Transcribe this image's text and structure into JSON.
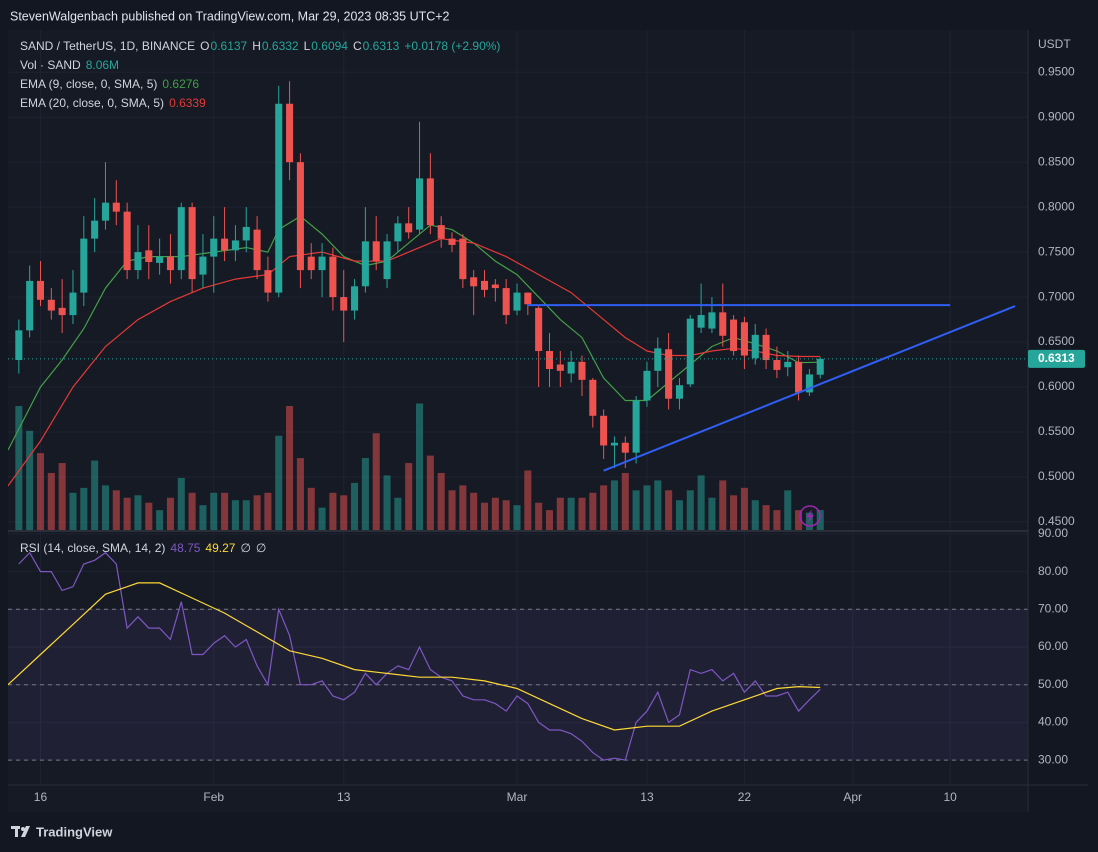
{
  "chart_data": {
    "type": "candlestick",
    "published": "StevenWalgenbach published on TradingView.com, Mar 29, 2023 08:35 UTC+2",
    "brand": "TradingView",
    "title": "SAND / TetherUS, 1D, BINANCE",
    "ohlc_keys": [
      "O",
      "H",
      "L",
      "C"
    ],
    "change_label": "+0.0178 (+2.90%)",
    "y_axis_label": "USDT",
    "up_color": "#26a69a",
    "down_color": "#ef5350",
    "x": [
      "01-14",
      "01-15",
      "01-16",
      "01-17",
      "01-18",
      "01-19",
      "01-20",
      "01-21",
      "01-22",
      "01-23",
      "01-24",
      "01-25",
      "01-26",
      "01-27",
      "01-28",
      "01-29",
      "01-30",
      "01-31",
      "02-01",
      "02-02",
      "02-03",
      "02-04",
      "02-05",
      "02-06",
      "02-07",
      "02-08",
      "02-09",
      "02-10",
      "02-11",
      "02-12",
      "02-13",
      "02-14",
      "02-15",
      "02-16",
      "02-17",
      "02-18",
      "02-19",
      "02-20",
      "02-21",
      "02-22",
      "02-23",
      "02-24",
      "02-25",
      "02-26",
      "02-27",
      "02-28",
      "03-01",
      "03-02",
      "03-03",
      "03-04",
      "03-05",
      "03-06",
      "03-07",
      "03-08",
      "03-09",
      "03-10",
      "03-11",
      "03-12",
      "03-13",
      "03-14",
      "03-15",
      "03-16",
      "03-17",
      "03-18",
      "03-19",
      "03-20",
      "03-21",
      "03-22",
      "03-23",
      "03-24",
      "03-25",
      "03-26",
      "03-27",
      "03-28",
      "03-29"
    ],
    "open": [
      0.63,
      0.663,
      0.718,
      0.697,
      0.688,
      0.68,
      0.705,
      0.765,
      0.785,
      0.805,
      0.795,
      0.73,
      0.752,
      0.738,
      0.745,
      0.73,
      0.8,
      0.725,
      0.745,
      0.765,
      0.752,
      0.763,
      0.775,
      0.73,
      0.705,
      0.915,
      0.85,
      0.745,
      0.73,
      0.745,
      0.7,
      0.685,
      0.712,
      0.762,
      0.72,
      0.762,
      0.782,
      0.775,
      0.832,
      0.78,
      0.765,
      0.765,
      0.722,
      0.718,
      0.714,
      0.71,
      0.685,
      0.705,
      0.688,
      0.64,
      0.625,
      0.615,
      0.628,
      0.608,
      0.568,
      0.535,
      0.538,
      0.527,
      0.585,
      0.618,
      0.642,
      0.587,
      0.603,
      0.666,
      0.665,
      0.683,
      0.675,
      0.672,
      0.632,
      0.658,
      0.63,
      0.622,
      0.628,
      0.594,
      0.6137
    ],
    "high": [
      0.675,
      0.735,
      0.74,
      0.71,
      0.72,
      0.73,
      0.79,
      0.81,
      0.85,
      0.83,
      0.805,
      0.78,
      0.78,
      0.765,
      0.77,
      0.805,
      0.805,
      0.77,
      0.79,
      0.8,
      0.78,
      0.8,
      0.79,
      0.745,
      0.935,
      0.94,
      0.86,
      0.76,
      0.76,
      0.755,
      0.73,
      0.72,
      0.8,
      0.79,
      0.77,
      0.79,
      0.8,
      0.895,
      0.86,
      0.79,
      0.772,
      0.77,
      0.73,
      0.73,
      0.72,
      0.72,
      0.715,
      0.705,
      0.69,
      0.66,
      0.64,
      0.64,
      0.635,
      0.61,
      0.575,
      0.545,
      0.545,
      0.59,
      0.628,
      0.655,
      0.66,
      0.61,
      0.68,
      0.715,
      0.7,
      0.715,
      0.68,
      0.678,
      0.67,
      0.665,
      0.645,
      0.64,
      0.635,
      0.62,
      0.6332
    ],
    "low": [
      0.615,
      0.655,
      0.69,
      0.675,
      0.66,
      0.67,
      0.69,
      0.75,
      0.775,
      0.78,
      0.72,
      0.72,
      0.72,
      0.725,
      0.715,
      0.72,
      0.705,
      0.71,
      0.705,
      0.74,
      0.74,
      0.75,
      0.72,
      0.695,
      0.7,
      0.83,
      0.71,
      0.72,
      0.7,
      0.685,
      0.65,
      0.675,
      0.705,
      0.73,
      0.71,
      0.75,
      0.765,
      0.77,
      0.77,
      0.755,
      0.75,
      0.71,
      0.68,
      0.7,
      0.695,
      0.67,
      0.68,
      0.68,
      0.6,
      0.6,
      0.6,
      0.605,
      0.59,
      0.555,
      0.52,
      0.51,
      0.51,
      0.515,
      0.578,
      0.6,
      0.575,
      0.575,
      0.6,
      0.66,
      0.66,
      0.645,
      0.635,
      0.62,
      0.625,
      0.62,
      0.61,
      0.612,
      0.585,
      0.59,
      0.6094
    ],
    "close": [
      0.663,
      0.718,
      0.697,
      0.685,
      0.68,
      0.705,
      0.765,
      0.785,
      0.805,
      0.795,
      0.73,
      0.75,
      0.739,
      0.745,
      0.73,
      0.8,
      0.72,
      0.745,
      0.765,
      0.752,
      0.763,
      0.778,
      0.73,
      0.705,
      0.915,
      0.85,
      0.73,
      0.73,
      0.745,
      0.7,
      0.685,
      0.712,
      0.762,
      0.74,
      0.762,
      0.782,
      0.772,
      0.832,
      0.78,
      0.765,
      0.758,
      0.72,
      0.712,
      0.708,
      0.71,
      0.68,
      0.705,
      0.692,
      0.64,
      0.62,
      0.618,
      0.628,
      0.608,
      0.568,
      0.535,
      0.538,
      0.527,
      0.585,
      0.618,
      0.643,
      0.587,
      0.602,
      0.676,
      0.68,
      0.683,
      0.657,
      0.64,
      0.635,
      0.658,
      0.63,
      0.619,
      0.628,
      0.594,
      0.614,
      0.6313
    ],
    "volume": {
      "name": "Vol · SAND",
      "last_label": "8.06M",
      "values": [
        50,
        40,
        31,
        23,
        27,
        15,
        17,
        28,
        18,
        16,
        13,
        14,
        11,
        8,
        13,
        21,
        15,
        10,
        15,
        15,
        12,
        12,
        14,
        15,
        38,
        50,
        29,
        17,
        9,
        15,
        14,
        19,
        29,
        39,
        22,
        13,
        27,
        51,
        30,
        23,
        16,
        18,
        15,
        11,
        13,
        12,
        10,
        24,
        11,
        8,
        13,
        13,
        13,
        15,
        18,
        20,
        23,
        16,
        18,
        20,
        16,
        12,
        16,
        22,
        13,
        20,
        14,
        17,
        12,
        10,
        8,
        16,
        8,
        7,
        8.06
      ]
    },
    "series": [
      {
        "name": "EMA (9, close, 0, SMA, 5)",
        "color": "#43a047",
        "x": [
          "01-13",
          "01-16",
          "01-18",
          "01-20",
          "01-22",
          "01-24",
          "01-26",
          "01-29",
          "02-01",
          "02-04",
          "02-06",
          "02-07",
          "02-09",
          "02-11",
          "02-13",
          "02-15",
          "02-17",
          "02-19",
          "02-21",
          "02-23",
          "02-25",
          "02-27",
          "03-01",
          "03-03",
          "03-05",
          "03-07",
          "03-09",
          "03-11",
          "03-13",
          "03-15",
          "03-17",
          "03-19",
          "03-21",
          "03-23",
          "03-25",
          "03-27",
          "03-29"
        ],
        "values": [
          0.53,
          0.6,
          0.63,
          0.665,
          0.71,
          0.74,
          0.745,
          0.745,
          0.75,
          0.755,
          0.75,
          0.775,
          0.79,
          0.77,
          0.745,
          0.735,
          0.74,
          0.76,
          0.78,
          0.775,
          0.76,
          0.74,
          0.725,
          0.7,
          0.675,
          0.655,
          0.61,
          0.585,
          0.585,
          0.605,
          0.625,
          0.645,
          0.655,
          0.648,
          0.64,
          0.627,
          0.6276
        ]
      },
      {
        "name": "EMA (20, close, 0, SMA, 5)",
        "color": "#e53935",
        "x": [
          "01-13",
          "01-16",
          "01-19",
          "01-22",
          "01-25",
          "01-28",
          "01-31",
          "02-03",
          "02-06",
          "02-08",
          "02-11",
          "02-14",
          "02-17",
          "02-20",
          "02-22",
          "02-25",
          "02-28",
          "03-03",
          "03-06",
          "03-09",
          "03-11",
          "03-13",
          "03-15",
          "03-17",
          "03-19",
          "03-21",
          "03-23",
          "03-25",
          "03-27",
          "03-29"
        ],
        "values": [
          0.49,
          0.54,
          0.6,
          0.645,
          0.675,
          0.695,
          0.71,
          0.72,
          0.725,
          0.745,
          0.75,
          0.74,
          0.74,
          0.755,
          0.765,
          0.76,
          0.745,
          0.725,
          0.705,
          0.675,
          0.655,
          0.64,
          0.635,
          0.635,
          0.64,
          0.643,
          0.64,
          0.635,
          0.634,
          0.6339
        ]
      }
    ],
    "drawings": [
      {
        "color": "#2f5ff5",
        "x": [
          "03-02",
          "04-10"
        ],
        "values": [
          0.691,
          0.691
        ]
      },
      {
        "color": "#2f5ff5",
        "x": [
          "03-09",
          "04-16"
        ],
        "values": [
          0.507,
          0.69
        ]
      }
    ],
    "xlim": [
      "01-13",
      "04-17"
    ],
    "xticks": [
      {
        "value": "01-16",
        "label": "16"
      },
      {
        "value": "02-01",
        "label": "Feb"
      },
      {
        "value": "02-13",
        "label": "13"
      },
      {
        "value": "03-01",
        "label": "Mar"
      },
      {
        "value": "03-13",
        "label": "13"
      },
      {
        "value": "03-22",
        "label": "22"
      },
      {
        "value": "04-01",
        "label": "Apr"
      },
      {
        "value": "04-10",
        "label": "10"
      }
    ],
    "ylim": [
      0.441,
      0.997
    ],
    "yticks": [
      {
        "value": 0.45,
        "label": "0.4500"
      },
      {
        "value": 0.5,
        "label": "0.5000"
      },
      {
        "value": 0.55,
        "label": "0.5500"
      },
      {
        "value": 0.6,
        "label": "0.6000"
      },
      {
        "value": 0.65,
        "label": "0.6500"
      },
      {
        "value": 0.7,
        "label": "0.7000"
      },
      {
        "value": 0.75,
        "label": "0.7500"
      },
      {
        "value": 0.8,
        "label": "0.8000"
      },
      {
        "value": 0.85,
        "label": "0.8500"
      },
      {
        "value": 0.9,
        "label": "0.9000"
      },
      {
        "value": 0.95,
        "label": "0.9500"
      }
    ],
    "grid": true,
    "rsi": {
      "name": "RSI (14, close, SMA, 14, 2)",
      "color": "#7e57c2",
      "values": [
        82,
        85,
        80,
        80,
        75,
        76,
        82,
        83,
        85,
        82,
        65,
        68,
        65,
        65,
        62,
        72,
        58,
        58,
        61,
        63,
        60,
        62,
        55,
        50,
        70,
        63,
        50,
        50,
        51,
        47,
        46,
        48,
        53,
        50,
        53,
        55,
        54,
        60,
        54,
        52,
        51,
        47,
        46,
        46,
        45,
        43,
        47,
        45,
        40,
        38,
        38,
        37,
        35,
        32,
        30,
        30.5,
        30,
        40,
        43,
        48,
        40,
        42,
        54,
        53,
        54,
        51,
        53,
        48,
        51,
        47,
        47,
        48,
        43,
        46,
        48.75
      ],
      "sma": {
        "color": "#fdd835",
        "x": [
          "01-13",
          "01-16",
          "01-19",
          "01-22",
          "01-25",
          "01-27",
          "01-30",
          "02-02",
          "02-05",
          "02-08",
          "02-11",
          "02-14",
          "02-17",
          "02-20",
          "02-23",
          "02-26",
          "03-01",
          "03-04",
          "03-07",
          "03-10",
          "03-13",
          "03-16",
          "03-19",
          "03-22",
          "03-25",
          "03-27",
          "03-29"
        ],
        "values": [
          50,
          58,
          66,
          74,
          77,
          77,
          73,
          69,
          64,
          59,
          57,
          54,
          53,
          52,
          52,
          51,
          49,
          45,
          41,
          38,
          39,
          39,
          43,
          46,
          49,
          49.5,
          49.27
        ]
      },
      "na_labels": [
        "∅",
        "∅"
      ],
      "levels": [
        70,
        50,
        30
      ],
      "ylim": [
        23.4,
        90.5
      ],
      "yticks": [
        {
          "value": 30,
          "label": "30.00"
        },
        {
          "value": 40,
          "label": "40.00"
        },
        {
          "value": 50,
          "label": "50.00"
        },
        {
          "value": 60,
          "label": "60.00"
        },
        {
          "value": 70,
          "label": "70.00"
        },
        {
          "value": 80,
          "label": "80.00"
        },
        {
          "value": 90,
          "label": "90.00"
        }
      ]
    }
  }
}
